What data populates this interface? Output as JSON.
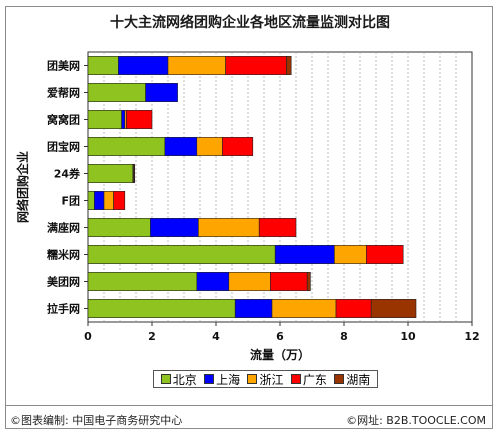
{
  "title": "十大主流网络团购企业各地区流量监测对比图",
  "footer": {
    "left": "©图表编制: 中国电子商务研究中心",
    "right": "©网址: B2B.TOOCLE.COM"
  },
  "chart_data": {
    "type": "bar",
    "orientation": "horizontal",
    "stacked": true,
    "title": "十大主流网络团购企业各地区流量监测对比图",
    "xlabel": "流量（万）",
    "ylabel": "网络团购企业",
    "xlim": [
      0,
      12
    ],
    "xticks": [
      "0",
      "2",
      "4",
      "6",
      "8",
      "10",
      "12"
    ],
    "grid": "vertical dashed",
    "legend_position": "bottom",
    "categories": [
      "团美网",
      "爱帮网",
      "窝窝团",
      "团宝网",
      "24券",
      "F团",
      "满座网",
      "糯米网",
      "美团网",
      "拉手网"
    ],
    "series": [
      {
        "name": "北京",
        "color": "#8fc31f",
        "values": [
          0.95,
          1.8,
          1.05,
          2.4,
          1.4,
          0.2,
          1.95,
          5.85,
          3.4,
          4.6
        ]
      },
      {
        "name": "上海",
        "color": "#0000ff",
        "values": [
          1.55,
          1.0,
          0.1,
          1.0,
          0.02,
          0.3,
          1.5,
          1.85,
          1.0,
          1.15
        ]
      },
      {
        "name": "浙江",
        "color": "#ffa500",
        "values": [
          1.8,
          0.0,
          0.05,
          0.8,
          0.02,
          0.3,
          1.9,
          1.0,
          1.3,
          2.0
        ]
      },
      {
        "name": "广东",
        "color": "#ff0000",
        "values": [
          1.9,
          0.0,
          0.8,
          0.95,
          0.02,
          0.35,
          1.15,
          1.15,
          1.15,
          1.1
        ]
      },
      {
        "name": "湖南",
        "color": "#993300",
        "values": [
          0.15,
          0.0,
          0.0,
          0.0,
          0.0,
          0.0,
          0.0,
          0.0,
          0.1,
          1.4
        ]
      }
    ]
  }
}
